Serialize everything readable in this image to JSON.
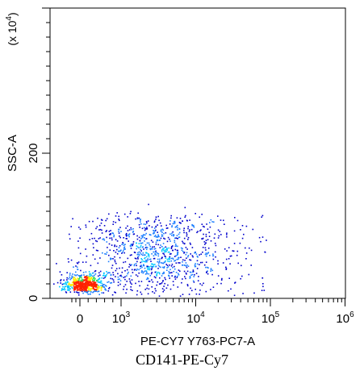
{
  "chart_data": {
    "type": "scatter",
    "subtype": "flow-cytometry-density-dot-plot",
    "xlabel": "PE-CY7 Y763-PC7-A",
    "ylabel": "SSC-A",
    "y_multiplier_label": "(x 10",
    "y_multiplier_exp": "4",
    "y_multiplier_close": ")",
    "caption": "CD141-PE-Cy7",
    "x_scale": "biexponential",
    "x_ticks": [
      {
        "value": 0,
        "label": "0",
        "sup": ""
      },
      {
        "value": 1000,
        "label": "10",
        "sup": "3"
      },
      {
        "value": 10000,
        "label": "10",
        "sup": "4"
      },
      {
        "value": 100000,
        "label": "10",
        "sup": "5"
      },
      {
        "value": 1000000,
        "label": "10",
        "sup": "6"
      }
    ],
    "y_ticks": [
      {
        "value": 0,
        "label": "0"
      },
      {
        "value": 200,
        "label": "200"
      }
    ],
    "ylim": [
      0,
      400
    ],
    "grid": false,
    "density_colors": [
      "#0000cc",
      "#1a7dff",
      "#00c8ff",
      "#33dd55",
      "#ffee00",
      "#ff2200"
    ],
    "populations": [
      {
        "x_center": 80,
        "y_center": 14,
        "n": 600
      },
      {
        "x_center": 3000,
        "y_center": 70,
        "n": 900
      }
    ]
  }
}
